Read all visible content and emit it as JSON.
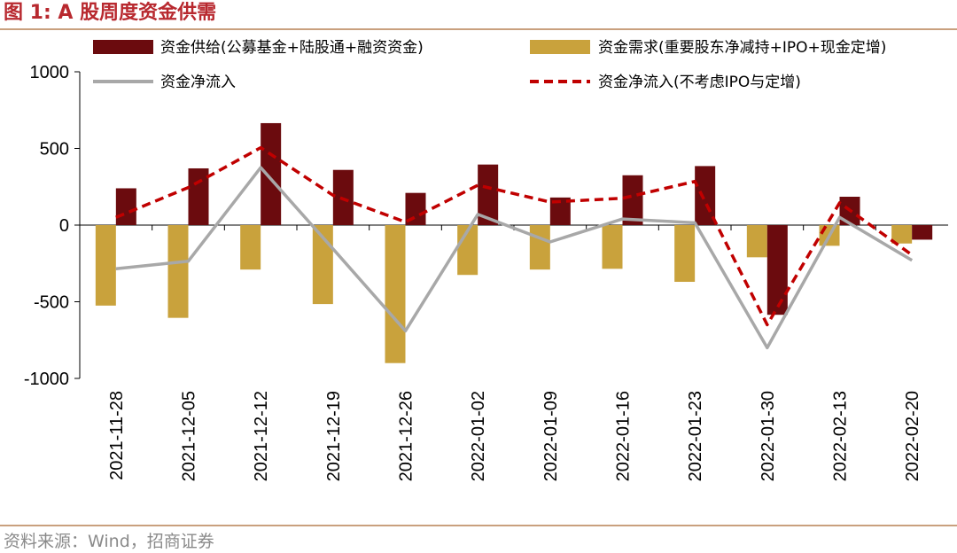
{
  "figure": {
    "title": "图 1:  A 股周度资金供需",
    "source": "资料来源：Wind，招商证券"
  },
  "colors": {
    "supply": "#6b0b0e",
    "demand": "#c9a23c",
    "net": "#a8a8a8",
    "net_ex": "#c00000",
    "title": "#b8292f",
    "rule": "#c9a07e"
  },
  "chart_data": {
    "type": "bar",
    "title": "",
    "xlabel": "",
    "ylabel": "",
    "ylim": [
      -1000,
      1000
    ],
    "yticks": [
      1000,
      500,
      0,
      -500,
      -1000
    ],
    "grid": false,
    "legend_position": "top",
    "categories": [
      "2021-11-28",
      "2021-12-05",
      "2021-12-12",
      "2021-12-19",
      "2021-12-26",
      "2022-01-02",
      "2022-01-09",
      "2022-01-16",
      "2022-01-23",
      "2022-01-30",
      "2022-02-13",
      "2022-02-20"
    ],
    "series": [
      {
        "name": "资金供给(公募基金+陆股通+融资资金)",
        "kind": "bar",
        "color": "#6b0b0e",
        "values": [
          240,
          370,
          665,
          360,
          210,
          395,
          180,
          325,
          385,
          -585,
          185,
          -95
        ]
      },
      {
        "name": "资金需求(重要股东净减持+IPO+现金定增)",
        "kind": "bar",
        "color": "#c9a23c",
        "values": [
          -525,
          -605,
          -290,
          -515,
          -900,
          -325,
          -290,
          -285,
          -370,
          -210,
          -135,
          -120
        ]
      },
      {
        "name": "资金净流入",
        "kind": "line",
        "color": "#a8a8a8",
        "values": [
          -285,
          -235,
          375,
          -155,
          -690,
          70,
          -110,
          40,
          15,
          -800,
          50,
          -230
        ]
      },
      {
        "name": "资金净流入(不考虑IPO与定增)",
        "kind": "dashed-line",
        "color": "#c00000",
        "values": [
          50,
          245,
          505,
          195,
          20,
          260,
          150,
          175,
          285,
          -650,
          145,
          -195
        ]
      }
    ]
  }
}
